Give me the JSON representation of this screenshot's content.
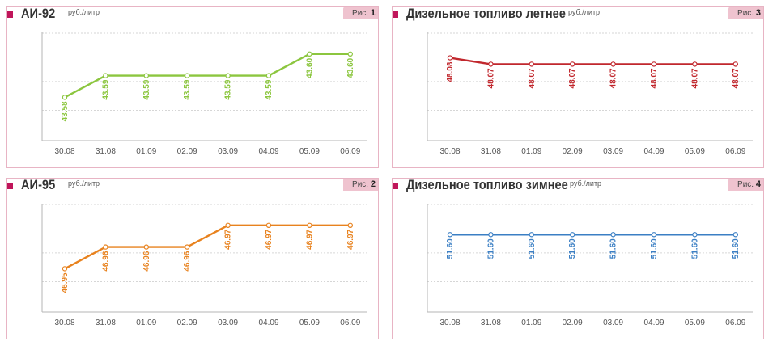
{
  "panels": [
    {
      "title": "АИ-92",
      "unit": "руб./литр",
      "fig_label": "Рис.",
      "fig_num": "1",
      "chart_data": {
        "type": "line",
        "categories": [
          "30.08",
          "31.08",
          "01.09",
          "02.09",
          "03.09",
          "04.09",
          "05.09",
          "06.09"
        ],
        "values": [
          43.58,
          43.59,
          43.59,
          43.59,
          43.59,
          43.59,
          43.6,
          43.6
        ],
        "labels": [
          "43.58",
          "43.59",
          "43.59",
          "43.59",
          "43.59",
          "43.59",
          "43.60",
          "43.60"
        ],
        "color": "#8cc63f",
        "ylim": [
          43.56,
          43.61
        ],
        "grid": true
      }
    },
    {
      "title": "Дизельное топливо летнее",
      "unit": "руб./литр",
      "fig_label": "Рис.",
      "fig_num": "3",
      "chart_data": {
        "type": "line",
        "categories": [
          "30.08",
          "31.08",
          "01.09",
          "02.09",
          "03.09",
          "04.09",
          "05.09",
          "06.09"
        ],
        "values": [
          48.08,
          48.07,
          48.07,
          48.07,
          48.07,
          48.07,
          48.07,
          48.07
        ],
        "labels": [
          "48.08",
          "48.07",
          "48.07",
          "48.07",
          "48.07",
          "48.07",
          "48.07",
          "48.07"
        ],
        "color": "#c1272d",
        "ylim": [
          47.95,
          48.12
        ],
        "grid": true
      }
    },
    {
      "title": "АИ-95",
      "unit": "руб./литр",
      "fig_label": "Рис.",
      "fig_num": "2",
      "chart_data": {
        "type": "line",
        "categories": [
          "30.08",
          "31.08",
          "01.09",
          "02.09",
          "03.09",
          "04.09",
          "05.09",
          "06.09"
        ],
        "values": [
          46.95,
          46.96,
          46.96,
          46.96,
          46.97,
          46.97,
          46.97,
          46.97
        ],
        "labels": [
          "46.95",
          "46.96",
          "46.96",
          "46.96",
          "46.97",
          "46.97",
          "46.97",
          "46.97"
        ],
        "color": "#e8821e",
        "ylim": [
          46.93,
          46.98
        ],
        "grid": true
      }
    },
    {
      "title": "Дизельное топливо зимнее",
      "unit": "руб./литр",
      "fig_label": "Рис.",
      "fig_num": "4",
      "chart_data": {
        "type": "line",
        "categories": [
          "30.08",
          "31.08",
          "01.09",
          "02.09",
          "03.09",
          "04.09",
          "05.09",
          "06.09"
        ],
        "values": [
          51.6,
          51.6,
          51.6,
          51.6,
          51.6,
          51.6,
          51.6,
          51.6
        ],
        "labels": [
          "51.60",
          "51.60",
          "51.60",
          "51.60",
          "51.60",
          "51.60",
          "51.60",
          "51.60"
        ],
        "color": "#3b7fc4",
        "ylim": [
          51.5,
          51.64
        ],
        "grid": true
      }
    }
  ]
}
